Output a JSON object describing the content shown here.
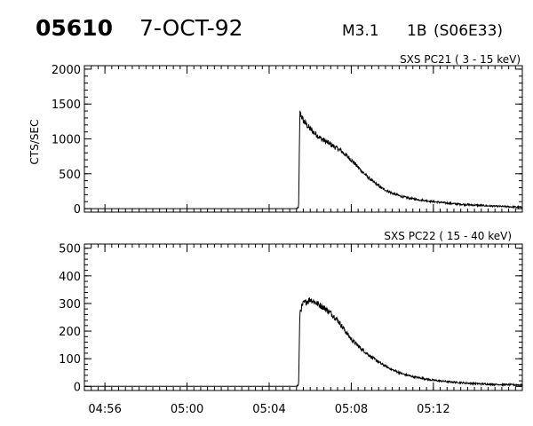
{
  "header": {
    "event_id": "05610",
    "date": "7-OCT-92",
    "flare_class": "M3.1",
    "optical_class": "1B",
    "location": "(S06E33)"
  },
  "chart_data": [
    {
      "type": "line",
      "title": "SXS PC21  (  3 - 15 keV)",
      "xlabel": "",
      "ylabel": "CTS/SEC",
      "xlim": [
        "04:55",
        "05:16:20"
      ],
      "ylim": [
        -50,
        2050
      ],
      "yticks": [
        0,
        500,
        1000,
        1500,
        2000
      ],
      "xticks": [
        "04:56",
        "05:00",
        "05:04",
        "05:08",
        "05:12"
      ],
      "grid": false,
      "series": [
        {
          "x": [
            "04:55",
            "05:05:20",
            "05:05:26",
            "05:05:30",
            "05:05:40",
            "05:06:00",
            "05:06:30",
            "05:07:00",
            "05:07:30",
            "05:08:00",
            "05:08:30",
            "05:09:00",
            "05:09:30",
            "05:10:00",
            "05:10:30",
            "05:11:00",
            "05:12:00",
            "05:13:00",
            "05:14:00",
            "05:15:00",
            "05:16:20"
          ],
          "values": [
            0,
            0,
            10,
            1380,
            1260,
            1140,
            1010,
            920,
            830,
            700,
            540,
            400,
            290,
            220,
            170,
            140,
            100,
            70,
            50,
            35,
            20
          ]
        }
      ]
    },
    {
      "type": "line",
      "title": "SXS PC22  ( 15 - 40 keV)",
      "xlabel": "",
      "ylabel": "",
      "xlim": [
        "04:55",
        "05:16:20"
      ],
      "ylim": [
        -15,
        515
      ],
      "yticks": [
        0,
        100,
        200,
        300,
        400,
        500
      ],
      "xticks": [
        "04:56",
        "05:00",
        "05:04",
        "05:08",
        "05:12"
      ],
      "grid": false,
      "series": [
        {
          "x": [
            "04:55",
            "05:05:20",
            "05:05:26",
            "05:05:30",
            "05:05:40",
            "05:06:00",
            "05:06:20",
            "05:06:40",
            "05:07:00",
            "05:07:20",
            "05:07:40",
            "05:08:00",
            "05:08:30",
            "05:09:00",
            "05:09:30",
            "05:10:00",
            "05:10:30",
            "05:11:00",
            "05:12:00",
            "05:13:00",
            "05:14:00",
            "05:15:00",
            "05:16:20"
          ],
          "values": [
            0,
            0,
            5,
            270,
            300,
            315,
            300,
            285,
            265,
            240,
            205,
            170,
            135,
            105,
            80,
            60,
            45,
            35,
            22,
            15,
            10,
            7,
            5
          ]
        }
      ]
    }
  ]
}
